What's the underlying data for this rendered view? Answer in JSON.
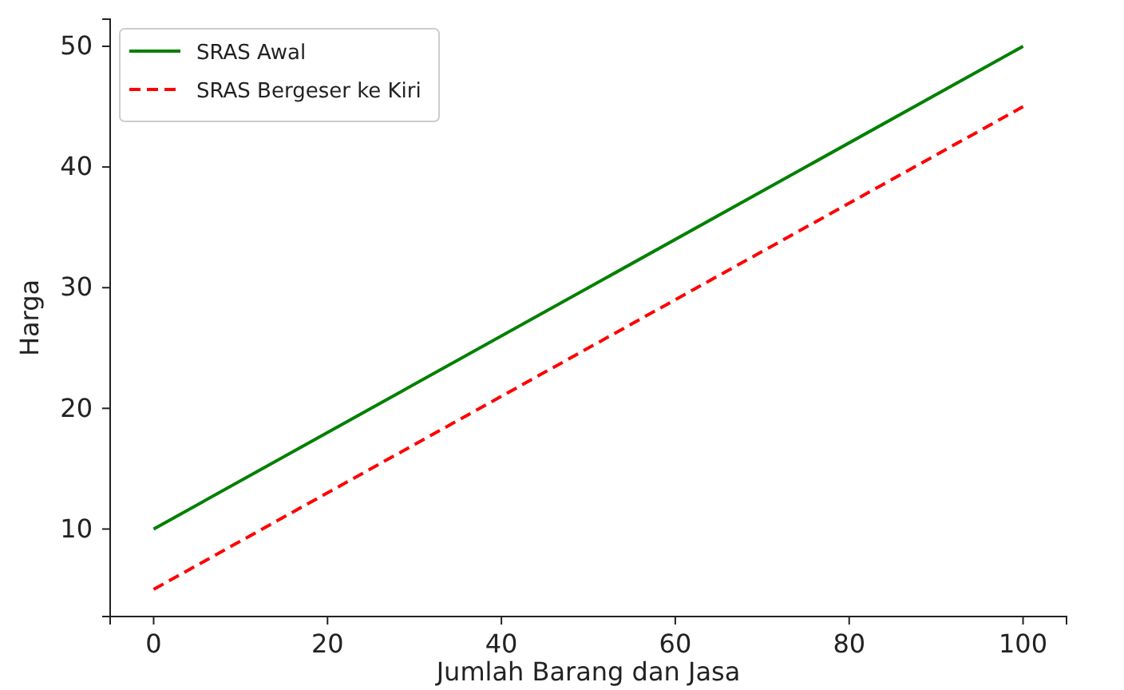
{
  "chart_data": {
    "type": "line",
    "xlabel": "Jumlah Barang dan Jasa",
    "ylabel": "Harga",
    "x": [
      0,
      100
    ],
    "series": [
      {
        "name": "SRAS Awal",
        "color": "#008000",
        "values": [
          10,
          50
        ],
        "line_style": "solid"
      },
      {
        "name": "SRAS Bergeser ke Kiri",
        "color": "#ff0000",
        "values": [
          5,
          45
        ],
        "line_style": "dashed"
      }
    ],
    "xlim": [
      -5,
      105
    ],
    "xticks": [
      0,
      20,
      40,
      60,
      80,
      100
    ],
    "ylim": [
      2.75,
      52.25
    ],
    "yticks": [
      10,
      20,
      30,
      40,
      50
    ],
    "legend": "top left",
    "grid": false,
    "marker": "none"
  }
}
